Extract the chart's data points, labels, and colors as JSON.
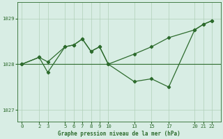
{
  "xlabel": "Graphe pression niveau de la mer (hPa)",
  "bg_color": "#d8ede4",
  "line_color": "#2d6b2d",
  "grid_color": "#b0cfb8",
  "upper_x": [
    0,
    2,
    3,
    5,
    6,
    7,
    8,
    9,
    10,
    13,
    15,
    17,
    20,
    21,
    22
  ],
  "upper_y": [
    1028.0,
    1028.15,
    1028.05,
    1028.38,
    1028.42,
    1028.55,
    1028.28,
    1028.38,
    1028.0,
    1028.22,
    1028.38,
    1028.58,
    1028.75,
    1028.87,
    1028.95
  ],
  "lower_x": [
    0,
    2,
    3,
    5,
    6,
    7,
    8,
    9,
    10,
    13,
    15,
    17,
    20,
    21,
    22
  ],
  "lower_y": [
    1028.0,
    1028.15,
    1027.82,
    1028.38,
    1028.42,
    1028.55,
    1028.28,
    1028.38,
    1028.0,
    1027.62,
    1027.68,
    1027.5,
    1028.75,
    1028.87,
    1028.95
  ],
  "hline_y": 1028.0,
  "xticks": [
    0,
    2,
    3,
    5,
    6,
    7,
    8,
    9,
    10,
    13,
    15,
    17,
    20,
    21,
    22
  ],
  "yticks": [
    1027,
    1028,
    1029
  ],
  "ylim": [
    1026.75,
    1029.35
  ],
  "xlim": [
    -0.5,
    23.0
  ]
}
